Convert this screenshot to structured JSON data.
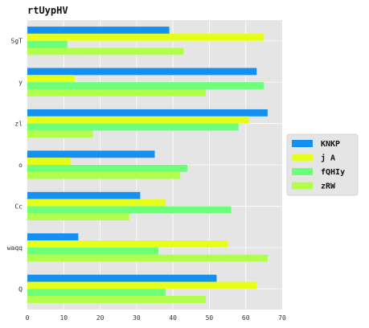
{
  "chart_data": {
    "type": "bar",
    "orientation": "horizontal",
    "title": "rtUypHV",
    "xlabel": "",
    "ylabel": "",
    "xlim": [
      0,
      70
    ],
    "x_ticks": [
      "0",
      "10",
      "20",
      "30",
      "40",
      "50",
      "60",
      "70"
    ],
    "categories": [
      "SgT",
      "y",
      "zl",
      "o",
      "Cc",
      "waqq",
      "Q"
    ],
    "series": [
      {
        "name": "KNKP",
        "color": "#1491f0",
        "values": [
          39,
          63,
          66,
          35,
          31,
          14,
          52
        ]
      },
      {
        "name": "j A",
        "color": "#e6ff1a",
        "values": [
          65,
          13,
          61,
          12,
          38,
          55,
          63
        ]
      },
      {
        "name": "fQHIy",
        "color": "#6dff7a",
        "values": [
          11,
          65,
          58,
          44,
          56,
          36,
          38
        ]
      },
      {
        "name": "zRW",
        "color": "#b1ff4a",
        "values": [
          43,
          49,
          18,
          42,
          28,
          66,
          49
        ]
      }
    ],
    "grid": true,
    "background": "#e5e5e5",
    "legend_position": "right"
  }
}
